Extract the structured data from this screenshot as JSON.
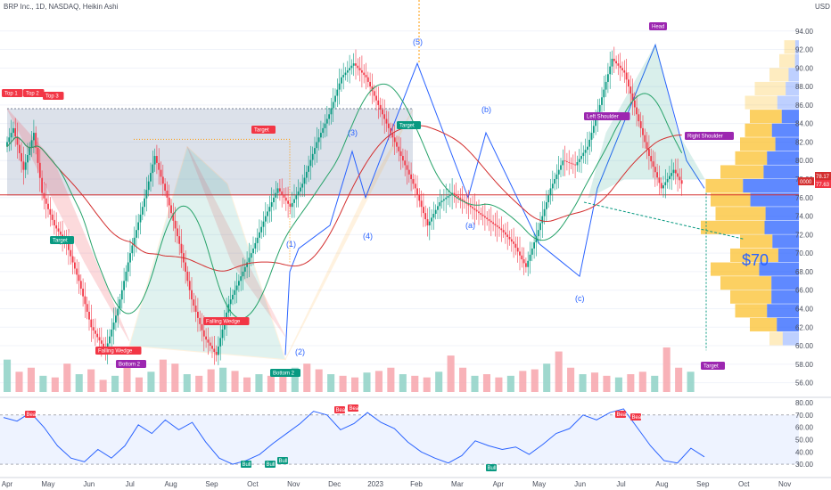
{
  "header": {
    "title": "BRP Inc., 1D, NASDAQ, Heikin Ashi"
  },
  "colors": {
    "up": "#089981",
    "down": "#f23645",
    "rsi": "#2962ff",
    "ma_long": "#d32f2f",
    "ma_short": "#26a269",
    "wedge": "#ff9800",
    "vp_blue": "#2962ff",
    "vp_orange": "#fbc02d"
  },
  "chart_data": {
    "type": "candlestick",
    "title": "BRP Inc., 1D, NASDAQ, Heikin Ashi",
    "currency": "USD",
    "ylim": [
      55,
      96
    ],
    "y_ticks": [
      "56.00",
      "58.00",
      "60.00",
      "62.00",
      "64.00",
      "66.00",
      "68.00",
      "70.00",
      "72.00",
      "74.00",
      "76.00",
      "78.00",
      "80.00",
      "82.00",
      "84.00",
      "86.00",
      "88.00",
      "90.00",
      "92.00",
      "94.00"
    ],
    "x_ticks": [
      "Apr",
      "May",
      "Jun",
      "Jul",
      "Aug",
      "Sep",
      "Oct",
      "Nov",
      "Dec",
      "2023",
      "Feb",
      "Mar",
      "Apr",
      "May",
      "Jun",
      "Jul",
      "Aug",
      "Sep",
      "Oct",
      "Nov"
    ],
    "price_path": [
      [
        0,
        81.5
      ],
      [
        4,
        83.5
      ],
      [
        9,
        79
      ],
      [
        14,
        83
      ],
      [
        18,
        76.5
      ],
      [
        24,
        73
      ],
      [
        30,
        71
      ],
      [
        36,
        67
      ],
      [
        42,
        62
      ],
      [
        49,
        59.5
      ],
      [
        55,
        64
      ],
      [
        61,
        70
      ],
      [
        67,
        75
      ],
      [
        73,
        80.5
      ],
      [
        79,
        76
      ],
      [
        85,
        71
      ],
      [
        91,
        65
      ],
      [
        97,
        61
      ],
      [
        103,
        59
      ],
      [
        109,
        64.5
      ],
      [
        115,
        67.5
      ],
      [
        121,
        70.5
      ],
      [
        127,
        74
      ],
      [
        133,
        77
      ],
      [
        139,
        75
      ],
      [
        145,
        77.5
      ],
      [
        152,
        82
      ],
      [
        158,
        85
      ],
      [
        164,
        89
      ],
      [
        170,
        90.5
      ],
      [
        176,
        89
      ],
      [
        182,
        86
      ],
      [
        188,
        83
      ],
      [
        194,
        80
      ],
      [
        200,
        77
      ],
      [
        206,
        73
      ],
      [
        212,
        75.5
      ],
      [
        218,
        76.5
      ],
      [
        224,
        75.5
      ],
      [
        230,
        74.5
      ],
      [
        236,
        73.5
      ],
      [
        242,
        72.5
      ],
      [
        248,
        71
      ],
      [
        254,
        68.5
      ],
      [
        260,
        72.5
      ],
      [
        266,
        77
      ],
      [
        272,
        80
      ],
      [
        278,
        79.5
      ],
      [
        284,
        81.5
      ],
      [
        290,
        86
      ],
      [
        296,
        91
      ],
      [
        302,
        89.5
      ],
      [
        308,
        85
      ],
      [
        314,
        80.5
      ],
      [
        320,
        77
      ],
      [
        326,
        79
      ],
      [
        330,
        77.5
      ]
    ],
    "last_price": "78.17",
    "last_price_secondary": "77.63",
    "countdown": "0000",
    "target_price_label": "$70",
    "volume_profile": {
      "price_min": 60,
      "price_max": 93,
      "bin_size": 1.5,
      "total_volume": [
        0.3,
        0.5,
        0.65,
        0.7,
        0.8,
        0.9,
        0.7,
        0.6,
        1.0,
        0.85,
        0.9,
        0.95,
        0.8,
        0.65,
        0.6,
        0.55,
        0.5,
        0.55,
        0.45,
        0.3,
        0.2,
        0.15
      ],
      "up_share": [
        0.55,
        0.45,
        0.5,
        0.4,
        0.35,
        0.45,
        0.3,
        0.45,
        0.35,
        0.4,
        0.55,
        0.6,
        0.45,
        0.5,
        0.4,
        0.5,
        0.35,
        0.4,
        0.3,
        0.35,
        0.2,
        0.25
      ],
      "value_area": [
        60.5,
        85.5
      ]
    },
    "volume": {
      "values": [
        40,
        25,
        30,
        20,
        18,
        35,
        22,
        28,
        15,
        20,
        30,
        18,
        25,
        40,
        35,
        22,
        20,
        28,
        30,
        26,
        18,
        22,
        20,
        25,
        30,
        35,
        28,
        22,
        20,
        18,
        24,
        26,
        30,
        22,
        20,
        18,
        25,
        45,
        30,
        20,
        22,
        18,
        20,
        26,
        28,
        35,
        50,
        30,
        22,
        24,
        20,
        18,
        22,
        25,
        20,
        55,
        30,
        25
      ]
    },
    "rsi": {
      "ylim": [
        25,
        80
      ],
      "ticks": [
        "30.00",
        "40.00",
        "50.00",
        "60.00",
        "70.00",
        "80.00"
      ],
      "upper_band": 70,
      "lower_band": 30,
      "values": [
        [
          0,
          68
        ],
        [
          10,
          65
        ],
        [
          20,
          72
        ],
        [
          30,
          60
        ],
        [
          40,
          45
        ],
        [
          50,
          35
        ],
        [
          60,
          32
        ],
        [
          70,
          42
        ],
        [
          80,
          35
        ],
        [
          90,
          45
        ],
        [
          100,
          62
        ],
        [
          110,
          55
        ],
        [
          120,
          66
        ],
        [
          130,
          58
        ],
        [
          140,
          64
        ],
        [
          150,
          48
        ],
        [
          160,
          35
        ],
        [
          170,
          30
        ],
        [
          180,
          33
        ],
        [
          190,
          38
        ],
        [
          200,
          47
        ],
        [
          210,
          55
        ],
        [
          220,
          63
        ],
        [
          230,
          73
        ],
        [
          240,
          70
        ],
        [
          250,
          58
        ],
        [
          260,
          63
        ],
        [
          270,
          72
        ],
        [
          280,
          64
        ],
        [
          290,
          59
        ],
        [
          300,
          48
        ],
        [
          310,
          40
        ],
        [
          320,
          35
        ],
        [
          330,
          31
        ],
        [
          340,
          37
        ],
        [
          350,
          49
        ],
        [
          360,
          45
        ],
        [
          370,
          42
        ],
        [
          380,
          44
        ],
        [
          390,
          38
        ],
        [
          400,
          46
        ],
        [
          410,
          55
        ],
        [
          420,
          59
        ],
        [
          430,
          70
        ],
        [
          440,
          66
        ],
        [
          450,
          72
        ],
        [
          460,
          75
        ],
        [
          470,
          60
        ],
        [
          480,
          45
        ],
        [
          490,
          33
        ],
        [
          500,
          31
        ],
        [
          510,
          43
        ],
        [
          520,
          36
        ]
      ]
    },
    "patterns": [
      {
        "label": "Top 1",
        "kind": "bear"
      },
      {
        "label": "Top 2",
        "kind": "bear"
      },
      {
        "label": "Top 3",
        "kind": "bear"
      },
      {
        "label": "Target",
        "kind": "bull"
      },
      {
        "label": "Target",
        "kind": "bear"
      },
      {
        "label": "Target",
        "kind": "bull"
      },
      {
        "label": "Falling Wedge",
        "kind": "bear"
      },
      {
        "label": "Falling Wedge",
        "kind": "bear"
      },
      {
        "label": "Bottom 2",
        "kind": "purple"
      },
      {
        "label": "Bottom 2",
        "kind": "bull"
      },
      {
        "label": "Head",
        "kind": "purple"
      },
      {
        "label": "Left Shoulder",
        "kind": "purple"
      },
      {
        "label": "Right Shoulder",
        "kind": "purple"
      },
      {
        "label": "Target",
        "kind": "purple"
      }
    ],
    "waves": [
      "(1)",
      "(2)",
      "(3)",
      "(4)",
      "(5)",
      "(a)",
      "(b)",
      "(c)"
    ],
    "rsi_signals": [
      "Bear",
      "Bear",
      "Bear",
      "Bear",
      "Bear",
      "Bull",
      "Bull",
      "Bull",
      "Bull"
    ]
  }
}
